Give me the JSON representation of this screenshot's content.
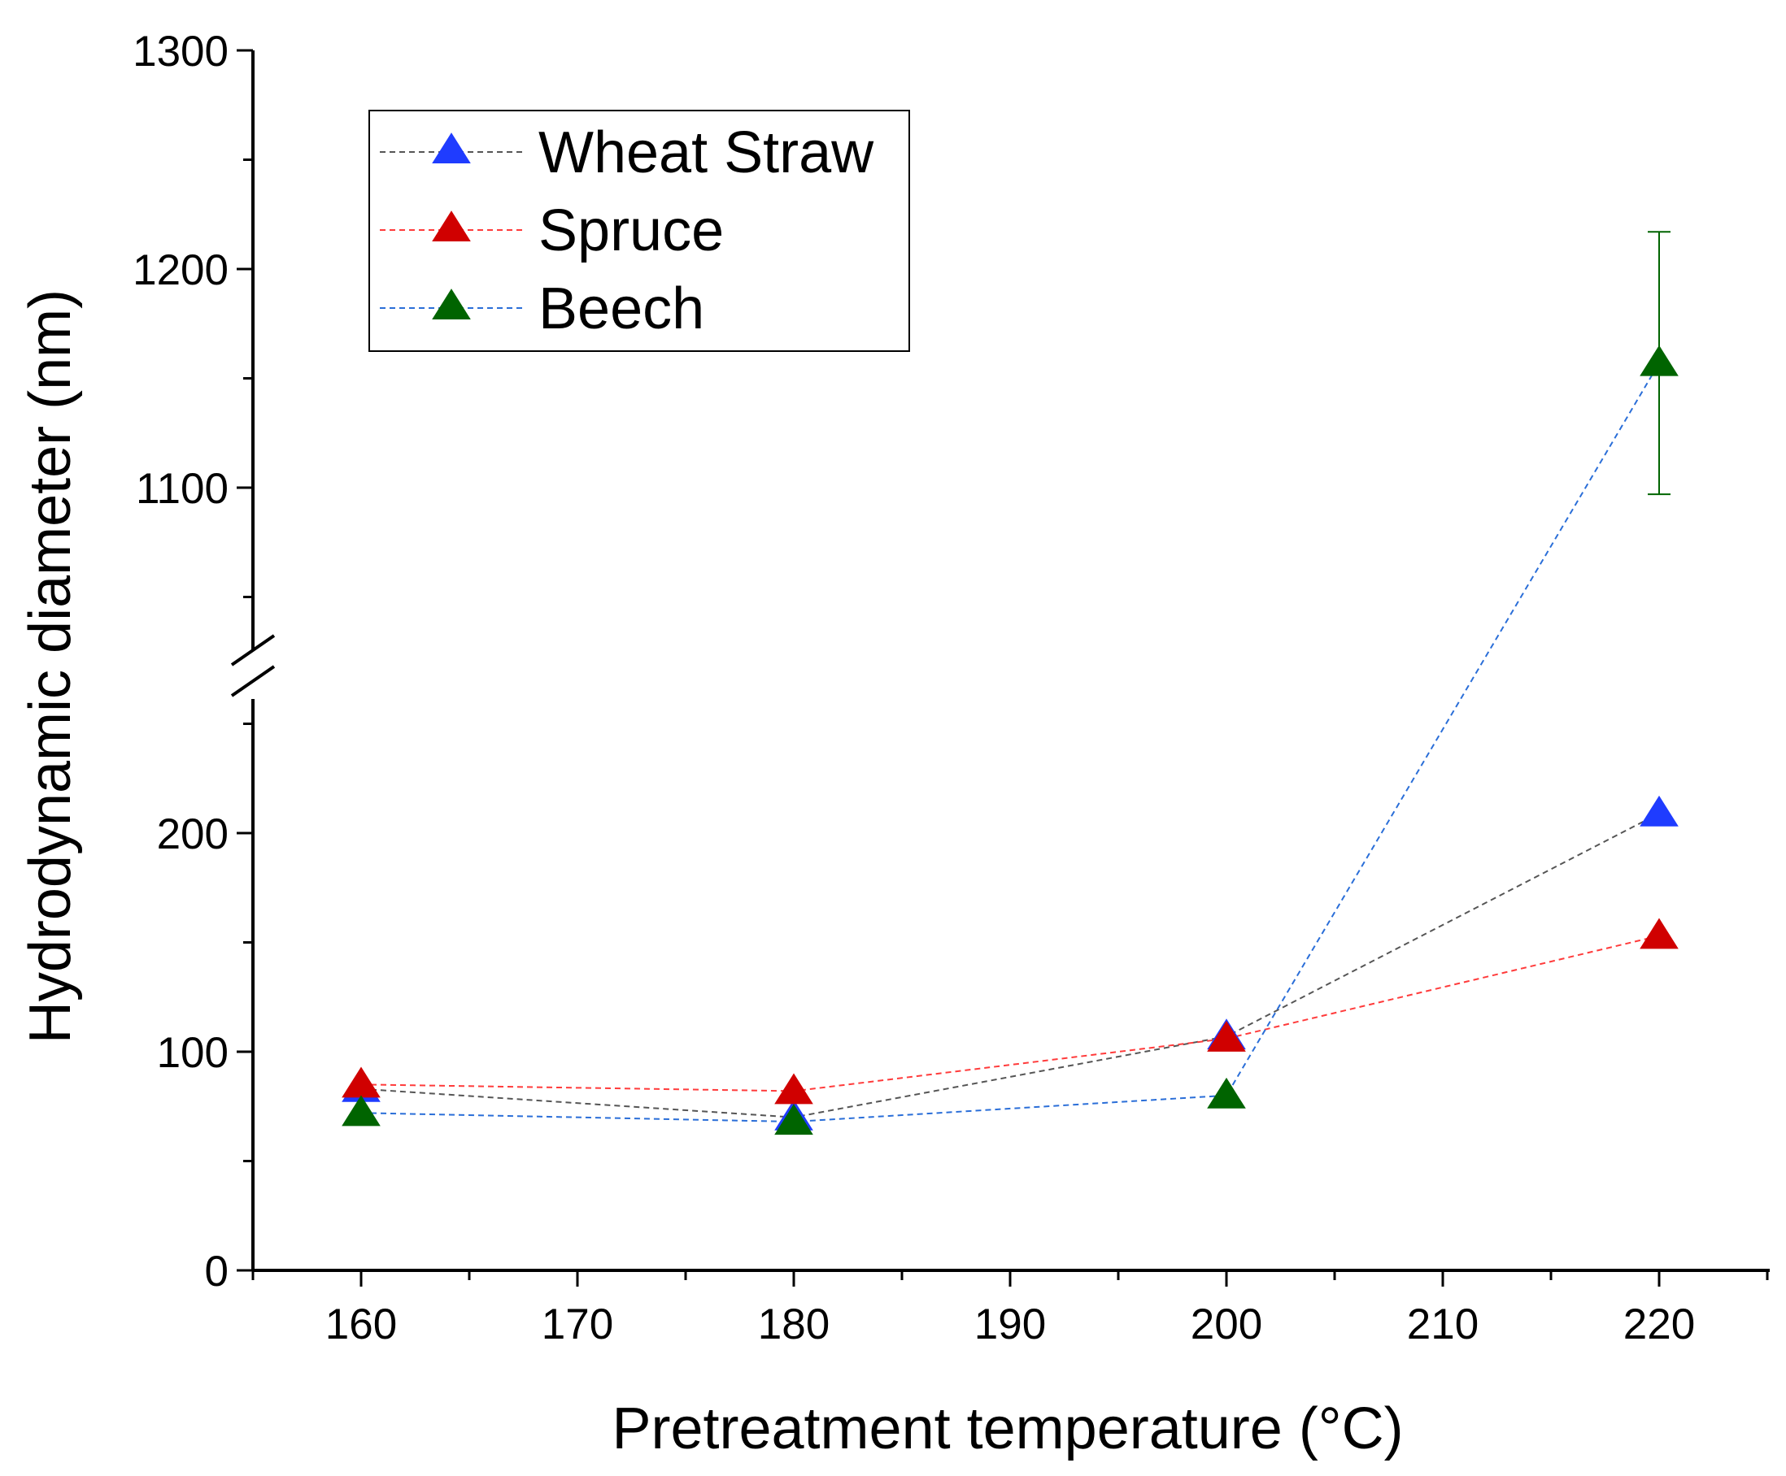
{
  "chart_data": {
    "type": "line",
    "title": "",
    "xlabel": "Pretreatment temperature (°C)",
    "ylabel": "Hydrodynamic diameter (nm)",
    "xlim": [
      155,
      225
    ],
    "xticks": [
      "160",
      "170",
      "180",
      "190",
      "200",
      "210",
      "220"
    ],
    "x": [
      160,
      180,
      200,
      220
    ],
    "y_axis_break": {
      "lower_range": [
        0,
        250
      ],
      "upper_range": [
        1050,
        1300
      ]
    },
    "yticks": [
      "0",
      "100",
      "200",
      "1100",
      "1200",
      "1300"
    ],
    "grid": false,
    "legend_position": "top-left",
    "series": [
      {
        "name": "Wheat Straw",
        "marker": "triangle",
        "marker_color": "#1f3cff",
        "line_color": "#555555",
        "line_style": "dashed",
        "values": [
          83,
          70,
          107,
          209
        ]
      },
      {
        "name": "Spruce",
        "marker": "triangle",
        "marker_color": "#d00000",
        "line_color": "#ff3b3b",
        "line_style": "dashed",
        "values": [
          85,
          82,
          106,
          153
        ]
      },
      {
        "name": "Beech",
        "marker": "triangle",
        "marker_color": "#006400",
        "line_color": "#2a6ed8",
        "line_style": "dashed",
        "values": [
          72,
          68,
          80,
          1157
        ],
        "error": [
          0,
          0,
          0,
          60
        ]
      }
    ]
  }
}
